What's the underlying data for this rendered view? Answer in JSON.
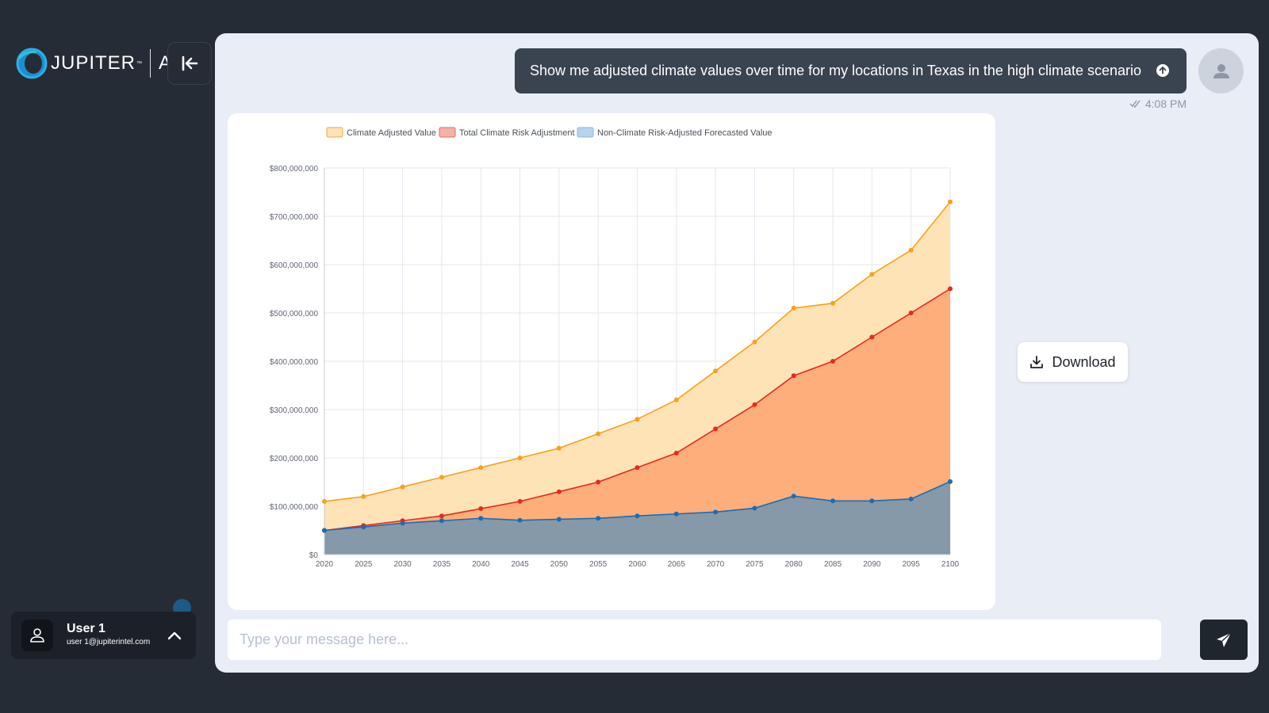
{
  "app": {
    "logo_text": "JUPITER",
    "logo_tm": "™",
    "logo_suffix": "AI"
  },
  "user": {
    "name": "User 1",
    "email": "user 1@jupiterintel.com"
  },
  "chat": {
    "user_message": "Show me adjusted climate values over time for my locations in Texas in the high climate scenario",
    "timestamp": "4:08 PM",
    "download_label": "Download",
    "input_placeholder": "Type your message here..."
  },
  "colors": {
    "sidebar_bg": "#262c35",
    "panel_bg": "#e8edf6",
    "message_bg": "#3a4350",
    "climate_adjusted_line": "#f5a21b",
    "climate_adjusted_fill": "#fde3b5",
    "risk_adjustment_line": "#e8291f",
    "risk_adjustment_fill": "#fdae7b",
    "non_climate_line": "#1b6cb4",
    "non_climate_fill": "#8599a9"
  },
  "chart_data": {
    "type": "area",
    "categories": [
      "2020",
      "2025",
      "2030",
      "2035",
      "2040",
      "2045",
      "2050",
      "2055",
      "2060",
      "2065",
      "2070",
      "2075",
      "2080",
      "2085",
      "2090",
      "2095",
      "2100"
    ],
    "series": [
      {
        "name": "Climate Adjusted Value",
        "values": [
          110000000,
          120000000,
          140000000,
          160000000,
          180000000,
          200000000,
          220000000,
          250000000,
          280000000,
          320000000,
          380000000,
          440000000,
          510000000,
          520000000,
          580000000,
          630000000,
          730000000
        ]
      },
      {
        "name": "Total Climate Risk Adjustment",
        "values": [
          50000000,
          60000000,
          70000000,
          80000000,
          95000000,
          110000000,
          130000000,
          150000000,
          180000000,
          210000000,
          260000000,
          310000000,
          370000000,
          400000000,
          450000000,
          500000000,
          550000000
        ]
      },
      {
        "name": "Non-Climate Risk-Adjusted Forecasted Value",
        "values": [
          50000000,
          57000000,
          65000000,
          70000000,
          75000000,
          71000000,
          73000000,
          75000000,
          80000000,
          84000000,
          88000000,
          96000000,
          121000000,
          111000000,
          111000000,
          115000000,
          151000000
        ]
      }
    ],
    "ylim": [
      0,
      800000000
    ],
    "yticks": [
      0,
      100000000,
      200000000,
      300000000,
      400000000,
      500000000,
      600000000,
      700000000,
      800000000
    ],
    "ytick_labels": [
      "$0",
      "$100,000,000",
      "$200,000,000",
      "$300,000,000",
      "$400,000,000",
      "$500,000,000",
      "$600,000,000",
      "$700,000,000",
      "$800,000,000"
    ],
    "legend_position": "top",
    "grid": true,
    "title": "",
    "xlabel": "",
    "ylabel": ""
  }
}
